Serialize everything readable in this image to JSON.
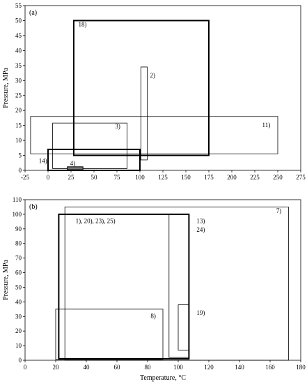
{
  "figure": {
    "xlabel": "Temperature, °C"
  },
  "chart_data": [
    {
      "type": "rectangles",
      "panel_label": "(a)",
      "ylabel": "Pressure, MPa",
      "xlim": [
        -25,
        275
      ],
      "ylim": [
        0,
        55
      ],
      "xticks": [
        -25,
        0,
        25,
        50,
        75,
        100,
        125,
        150,
        175,
        200,
        225,
        250,
        275
      ],
      "yticks": [
        0,
        5,
        10,
        15,
        20,
        25,
        30,
        35,
        40,
        45,
        50,
        55
      ],
      "rects": [
        {
          "label": "18)",
          "x0": 28,
          "x1": 175,
          "y0": 5,
          "y1": 50,
          "stroke": "bold",
          "label_at": [
            33,
            48
          ]
        },
        {
          "label": "2)",
          "x0": 101,
          "x1": 108,
          "y0": 3.5,
          "y1": 34.5,
          "stroke": "thin",
          "label_at": [
            111,
            31
          ]
        },
        {
          "label": "11)",
          "x0": -19,
          "x1": 250,
          "y0": 5.5,
          "y1": 18,
          "stroke": "thin",
          "label_at": [
            233,
            14.5
          ]
        },
        {
          "label": "3)",
          "x0": 5,
          "x1": 86,
          "y0": 0.6,
          "y1": 15.8,
          "stroke": "thin",
          "label_at": [
            73,
            14
          ]
        },
        {
          "label": "14)",
          "x0": 0,
          "x1": 100,
          "y0": 0,
          "y1": 7,
          "stroke": "bold",
          "label_at": [
            -10,
            2.5
          ]
        },
        {
          "label": "4)",
          "x0": 21,
          "x1": 38,
          "y0": 0.2,
          "y1": 1.2,
          "stroke": "filled",
          "label_at": [
            24,
            1.6
          ]
        }
      ]
    },
    {
      "type": "rectangles",
      "panel_label": "(b)",
      "ylabel": "Pressure, MPa",
      "xlabel": "Temperature, °C",
      "xlim": [
        0,
        180
      ],
      "ylim": [
        0,
        110
      ],
      "xticks": [
        0,
        20,
        40,
        60,
        80,
        100,
        120,
        140,
        160,
        180
      ],
      "yticks": [
        0,
        10,
        20,
        30,
        40,
        50,
        60,
        70,
        80,
        90,
        100,
        110
      ],
      "rects": [
        {
          "label": "7)",
          "x0": 26,
          "x1": 172,
          "y0": 0,
          "y1": 105,
          "stroke": "thin",
          "label_at": [
            164,
            101
          ]
        },
        {
          "label": "1), 20), 23), 25)",
          "x0": 22,
          "x1": 107,
          "y0": 1,
          "y1": 100,
          "stroke": "bold",
          "label_at": [
            33,
            94
          ]
        },
        {
          "label": "13)",
          "x0": 94,
          "x1": 107,
          "y0": 2,
          "y1": 100,
          "stroke": "thin",
          "label_at": [
            112,
            94
          ]
        },
        {
          "label": "24)",
          "x0": 94,
          "x1": 107,
          "y0": 2,
          "y1": 100,
          "stroke": "none",
          "label_at": [
            112,
            88
          ]
        },
        {
          "label": "8)",
          "x0": 20,
          "x1": 90,
          "y0": 0.5,
          "y1": 35,
          "stroke": "thin",
          "label_at": [
            82,
            29
          ]
        },
        {
          "label": "19)",
          "x0": 100,
          "x1": 107,
          "y0": 7,
          "y1": 38,
          "stroke": "thin",
          "label_at": [
            112,
            31
          ]
        }
      ]
    }
  ]
}
